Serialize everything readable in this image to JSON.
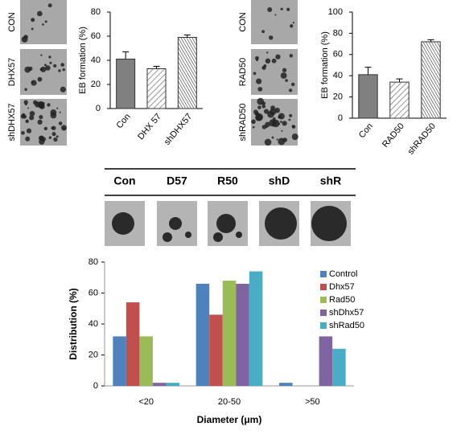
{
  "micrographs": {
    "panel_a": [
      "CON",
      "DHX57",
      "shDHX57"
    ],
    "panel_b": [
      "CON",
      "RAD50",
      "shRAD50"
    ],
    "panel_c": [
      "Con",
      "D57",
      "R50",
      "shD",
      "shR"
    ]
  },
  "chart_data": [
    {
      "type": "bar",
      "ylabel": "EB formation (%)",
      "categories": [
        "Con",
        "DHX 57",
        "shDHX57"
      ],
      "values": [
        41,
        33,
        59
      ],
      "errors": [
        6,
        2,
        2
      ],
      "color": "#808080",
      "bar_styles": [
        "solid",
        "hatch",
        "dense-hatch"
      ],
      "ylim": [
        0,
        80
      ],
      "yticks": [
        0,
        20,
        40,
        60,
        80
      ]
    },
    {
      "type": "bar",
      "ylabel": "EB formation (%)",
      "categories": [
        "Con",
        "RAD50",
        "shRAD50"
      ],
      "values": [
        41,
        34,
        72
      ],
      "errors": [
        7,
        3,
        2
      ],
      "color": "#808080",
      "bar_styles": [
        "solid",
        "hatch",
        "dense-hatch"
      ],
      "ylim": [
        0,
        100
      ],
      "yticks": [
        0,
        20,
        40,
        60,
        80,
        100
      ]
    },
    {
      "type": "grouped-bar",
      "xlabel": "Diameter (μm)",
      "ylabel": "Distribution (%)",
      "categories": [
        "<20",
        "20-50",
        ">50"
      ],
      "series": [
        {
          "name": "Control",
          "color": "#4f81bd",
          "values": [
            32,
            66,
            2
          ]
        },
        {
          "name": "Dhx57",
          "color": "#c0504d",
          "values": [
            54,
            46,
            0
          ]
        },
        {
          "name": "Rad50",
          "color": "#9bbb59",
          "values": [
            32,
            68,
            0
          ]
        },
        {
          "name": "shDhx57",
          "color": "#8064a2",
          "values": [
            2,
            66,
            32
          ]
        },
        {
          "name": "shRad50",
          "color": "#4bacc6",
          "values": [
            2,
            74,
            24
          ]
        }
      ],
      "ylim": [
        0,
        80
      ],
      "yticks": [
        0,
        20,
        40,
        60,
        80
      ],
      "legend": "top-right"
    }
  ]
}
